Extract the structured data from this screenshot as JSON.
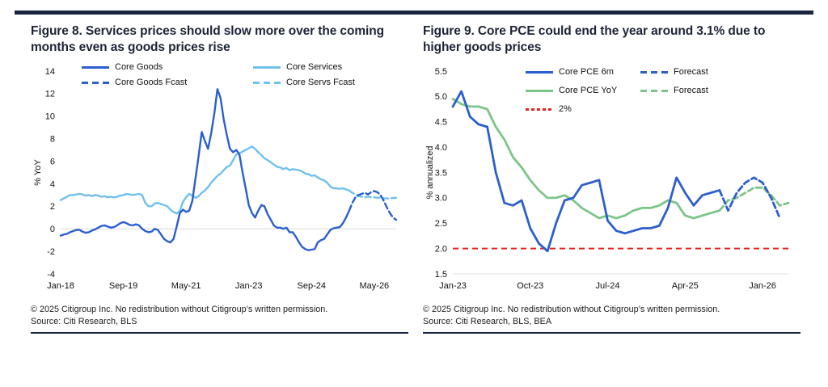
{
  "page": {
    "rule_color": "#182440",
    "background": "#ffffff"
  },
  "figures": [
    {
      "title": "Figure 8. Services prices should slow more over the coming months even as goods prices rise",
      "copyright": "© 2025 Citigroup Inc. No redistribution without Citigroup’s written permission.",
      "source": "Source: Citi Research, BLS"
    },
    {
      "title": "Figure 9. Core PCE could end the year around 3.1% due to higher goods prices",
      "copyright": "© 2025 Citigroup Inc. No redistribution without Citigroup’s written permission.",
      "source": "Source: Citi Research, BLS, BEA"
    }
  ],
  "chart_data": [
    {
      "type": "line",
      "title": "Figure 8. Services prices should slow more over the coming months even as goods prices rise",
      "xlabel": "",
      "ylabel": "% YoY",
      "ylim": [
        -4,
        14
      ],
      "x_count": 108,
      "x_start": "Jan-18",
      "x_end": "Dec-26",
      "grid": "zero-line only",
      "legend_position": "top",
      "gridline_values": [
        0
      ],
      "yticks": [
        {
          "label": "14",
          "v": 14
        },
        {
          "label": "12",
          "v": 12
        },
        {
          "label": "10",
          "v": 10
        },
        {
          "label": "8",
          "v": 8
        },
        {
          "label": "6",
          "v": 6
        },
        {
          "label": "4",
          "v": 4
        },
        {
          "label": "2",
          "v": 2
        },
        {
          "label": "0",
          "v": 0
        },
        {
          "label": "-2",
          "v": -2
        },
        {
          "label": "-4",
          "v": -4
        }
      ],
      "xticks": [
        {
          "label": "Jan-18",
          "i": 0
        },
        {
          "label": "Sep-19",
          "i": 20
        },
        {
          "label": "May-21",
          "i": 40
        },
        {
          "label": "Jan-23",
          "i": 60
        },
        {
          "label": "Sep-24",
          "i": 80
        },
        {
          "label": "May-26",
          "i": 100
        }
      ],
      "legend_rows": [
        [
          {
            "label": "Core Goods",
            "color": "#2b5fce",
            "dash": false
          },
          {
            "label": "Core Services",
            "color": "#70c0ee",
            "dash": false
          }
        ],
        [
          {
            "label": "Core Goods Fcast",
            "color": "#2b5fce",
            "dash": true
          },
          {
            "label": "Core Servs Fcast",
            "color": "#70c0ee",
            "dash": true
          }
        ]
      ],
      "series": [
        {
          "name": "Core Services",
          "color": "#70c0ee",
          "dash": false,
          "start": 0,
          "values": [
            2.55,
            2.7,
            2.85,
            3.0,
            3.0,
            3.05,
            3.1,
            3.05,
            2.95,
            3.0,
            2.9,
            3.0,
            2.95,
            2.85,
            2.9,
            2.8,
            2.85,
            2.8,
            2.85,
            2.95,
            3.0,
            3.1,
            3.05,
            3.0,
            3.05,
            3.1,
            3.0,
            2.3,
            2.0,
            2.0,
            2.25,
            2.3,
            2.2,
            2.1,
            2.0,
            1.7,
            1.5,
            1.35,
            1.6,
            2.4,
            2.8,
            3.1,
            2.95,
            2.75,
            2.9,
            3.2,
            3.4,
            3.7,
            4.1,
            4.4,
            4.7,
            4.9,
            5.2,
            5.5,
            5.6,
            6.1,
            6.6,
            6.7,
            6.85,
            7.0,
            7.15,
            7.3,
            7.1,
            6.8,
            6.55,
            6.25,
            6.1,
            5.9,
            5.7,
            5.5,
            5.45,
            5.3,
            5.4,
            5.2,
            5.3,
            5.25,
            5.2,
            5.1,
            4.9,
            4.85,
            4.7,
            4.75,
            4.55,
            4.4,
            4.3,
            4.1,
            3.75,
            3.6,
            3.6,
            3.55,
            3.6,
            3.5,
            3.4
          ]
        },
        {
          "name": "Core Servs Fcast",
          "color": "#70c0ee",
          "dash": true,
          "start": 92,
          "values": [
            3.4,
            3.2,
            3.05,
            2.9,
            2.85,
            2.8,
            2.85,
            2.8,
            2.8,
            2.75,
            2.8,
            2.7,
            2.7,
            2.7,
            2.75,
            2.75
          ]
        },
        {
          "name": "Core Goods",
          "color": "#2b5fce",
          "dash": false,
          "start": 0,
          "values": [
            -0.6,
            -0.5,
            -0.45,
            -0.3,
            -0.2,
            -0.1,
            -0.1,
            -0.25,
            -0.35,
            -0.3,
            -0.15,
            -0.05,
            0.1,
            0.25,
            0.3,
            0.2,
            0.1,
            0.15,
            0.3,
            0.5,
            0.6,
            0.5,
            0.35,
            0.3,
            0.4,
            0.3,
            0.0,
            -0.2,
            -0.3,
            -0.25,
            0.0,
            -0.1,
            -0.5,
            -0.9,
            -1.1,
            -1.2,
            -0.9,
            0.2,
            1.4,
            1.7,
            1.5,
            1.6,
            2.5,
            4.5,
            6.5,
            8.6,
            7.8,
            7.1,
            8.5,
            10.2,
            12.4,
            11.6,
            9.7,
            8.3,
            7.1,
            6.8,
            7.0,
            6.6,
            5.0,
            3.6,
            2.1,
            1.4,
            1.0,
            1.6,
            2.1,
            2.0,
            1.3,
            0.8,
            0.3,
            0.1,
            0.1,
            0.0,
            0.1,
            -0.3,
            -0.3,
            -0.7,
            -1.2,
            -1.6,
            -1.8,
            -1.9,
            -1.85,
            -1.8,
            -1.2,
            -1.0,
            -0.9,
            -0.5,
            -0.1,
            0.05,
            0.1,
            0.15,
            0.5,
            1.0,
            1.6
          ]
        },
        {
          "name": "Core Goods Fcast",
          "color": "#2b5fce",
          "dash": true,
          "start": 92,
          "values": [
            1.6,
            2.3,
            2.8,
            3.0,
            3.1,
            3.2,
            3.05,
            3.25,
            3.35,
            3.25,
            3.0,
            2.5,
            1.9,
            1.4,
            1.0,
            0.8
          ]
        }
      ]
    },
    {
      "type": "line",
      "title": "Figure 9. Core PCE could end the year around 3.1% due to higher goods prices",
      "xlabel": "",
      "ylabel": "% annualized",
      "ylim": [
        1.5,
        5.5
      ],
      "x_count": 40,
      "x_start": "Jan-23",
      "x_end": "Apr-26",
      "grid": "bottom-line only",
      "legend_position": "top",
      "gridline_values": [
        1.5
      ],
      "refline": {
        "value": 2.0,
        "color": "#e82020",
        "label": "2%"
      },
      "yticks": [
        {
          "label": "5.5",
          "v": 5.5
        },
        {
          "label": "5.0",
          "v": 5.0
        },
        {
          "label": "4.5",
          "v": 4.5
        },
        {
          "label": "4.0",
          "v": 4.0
        },
        {
          "label": "3.5",
          "v": 3.5
        },
        {
          "label": "3.0",
          "v": 3.0
        },
        {
          "label": "2.5",
          "v": 2.5
        },
        {
          "label": "2.0",
          "v": 2.0
        },
        {
          "label": "1.5",
          "v": 1.5
        }
      ],
      "xticks": [
        {
          "label": "Jan-23",
          "i": 0
        },
        {
          "label": "Oct-23",
          "i": 9
        },
        {
          "label": "Jul-24",
          "i": 18
        },
        {
          "label": "Apr-25",
          "i": 27
        },
        {
          "label": "Jan-26",
          "i": 36
        }
      ],
      "legend_rows": [
        [
          {
            "label": "Core PCE 6m",
            "color": "#2b5fce",
            "dash": false
          },
          {
            "label": "Forecast",
            "color": "#2b5fce",
            "dash": true
          }
        ],
        [
          {
            "label": "Core PCE YoY",
            "color": "#7cc589",
            "dash": false
          },
          {
            "label": "Forecast",
            "color": "#7cc589",
            "dash": true
          }
        ],
        [
          {
            "label": "2%",
            "color": "#e82020",
            "dash": true
          }
        ]
      ],
      "series": [
        {
          "name": "Core PCE YoY",
          "color": "#7cc589",
          "dash": false,
          "start": 0,
          "values": [
            4.95,
            4.85,
            4.8,
            4.8,
            4.75,
            4.4,
            4.15,
            3.8,
            3.6,
            3.35,
            3.15,
            3.0,
            3.0,
            3.05,
            2.95,
            2.8,
            2.7,
            2.6,
            2.65,
            2.6,
            2.65,
            2.75,
            2.8,
            2.8,
            2.85,
            2.95,
            2.9,
            2.65,
            2.6,
            2.65,
            2.7,
            2.75
          ]
        },
        {
          "name": "Core PCE YoY Forecast",
          "color": "#7cc589",
          "dash": true,
          "start": 31,
          "values": [
            2.75,
            2.95,
            3.0,
            3.1,
            3.2,
            3.2,
            3.05,
            2.85,
            2.9
          ]
        },
        {
          "name": "Core PCE 6m",
          "color": "#2b5fce",
          "dash": false,
          "start": 0,
          "values": [
            4.8,
            5.1,
            4.6,
            4.45,
            4.4,
            3.5,
            2.9,
            2.85,
            2.95,
            2.4,
            2.1,
            1.95,
            2.5,
            2.95,
            3.0,
            3.25,
            3.3,
            3.35,
            2.55,
            2.35,
            2.3,
            2.35,
            2.4,
            2.4,
            2.45,
            2.8,
            3.4,
            3.1,
            2.85,
            3.05,
            3.1,
            3.15
          ]
        },
        {
          "name": "Core PCE 6m Forecast",
          "color": "#2b5fce",
          "dash": true,
          "start": 31,
          "values": [
            3.15,
            2.75,
            3.1,
            3.3,
            3.4,
            3.3,
            3.0,
            2.6
          ]
        }
      ]
    }
  ]
}
